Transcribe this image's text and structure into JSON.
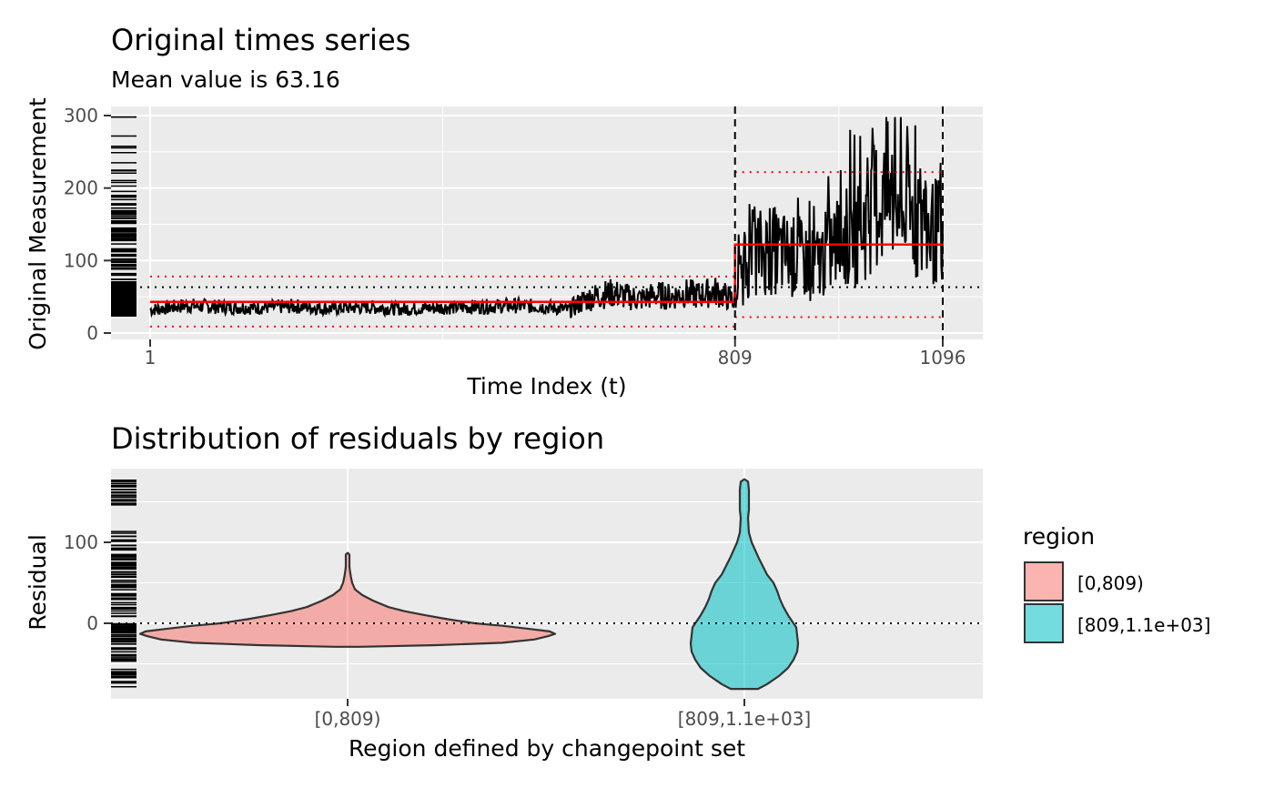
{
  "chart_data": [
    {
      "type": "line",
      "title": "Original times series",
      "subtitle": "Mean value is 63.16",
      "xlabel": "Time Index (t)",
      "ylabel": "Original Measurement",
      "xlim": [
        1,
        1096
      ],
      "ylim": [
        0,
        300
      ],
      "y_ticks": [
        0,
        100,
        200,
        300
      ],
      "x_ticks": [
        1,
        809,
        1096
      ],
      "x_tick_labels": [
        "1",
        "809",
        "1096"
      ],
      "mean": 63.16,
      "changepoints": [
        809,
        1096
      ],
      "grid": true,
      "series": [
        {
          "description": "observations",
          "x": [
            1,
            50,
            100,
            150,
            200,
            250,
            300,
            350,
            400,
            450,
            500,
            550,
            580,
            600,
            620,
            640,
            660,
            680,
            700,
            720,
            740,
            760,
            780,
            808,
            809,
            830,
            860,
            890,
            920,
            950,
            980,
            1000,
            1020,
            1040,
            1060,
            1080,
            1096
          ],
          "values": [
            32,
            38,
            36,
            35,
            37,
            34,
            36,
            33,
            35,
            36,
            38,
            36,
            32,
            45,
            52,
            55,
            50,
            47,
            53,
            50,
            55,
            52,
            58,
            45,
            55,
            110,
            115,
            105,
            95,
            125,
            140,
            175,
            190,
            170,
            160,
            140,
            140
          ]
        },
        {
          "description": "segment mean",
          "segments": [
            {
              "x": [
                1,
                809
              ],
              "value": 43
            },
            {
              "x": [
                809,
                1096
              ],
              "value": 122
            }
          ]
        },
        {
          "description": "segment bounds",
          "segments": [
            {
              "x": [
                1,
                809
              ],
              "lower": 9,
              "upper": 78
            },
            {
              "x": [
                809,
                1096
              ],
              "lower": 22,
              "upper": 222
            }
          ]
        }
      ]
    },
    {
      "type": "violin",
      "title": "Distribution of residuals by region",
      "xlabel": "Region defined by changepoint set",
      "ylabel": "Residual",
      "categories": [
        "[0,809)",
        "[809,1.1e+03]"
      ],
      "y_ticks": [
        0,
        100
      ],
      "ylim": [
        -95,
        185
      ],
      "zero_line": 0,
      "legend": {
        "title": "region",
        "placement": "right",
        "entries": [
          {
            "label": "[0,809)",
            "color": "#F8766D"
          },
          {
            "label": "[809,1.1e+03]",
            "color": "#00BFC4"
          }
        ]
      },
      "violins": [
        {
          "category": "[0,809)",
          "color": "#F8766D",
          "y": [
            -29,
            -27,
            -24,
            -20,
            -16,
            -13,
            -10,
            -7,
            -3,
            0,
            5,
            10,
            15,
            20,
            28,
            35,
            42,
            50,
            58,
            65,
            70,
            75,
            80,
            85,
            87
          ],
          "half_width": [
            14,
            98,
            170,
            205,
            220,
            228,
            222,
            200,
            170,
            140,
            110,
            85,
            62,
            45,
            28,
            16,
            8,
            5,
            3.5,
            2.5,
            2,
            2,
            2,
            2,
            0
          ]
        },
        {
          "category": "[809,1.1e+03]",
          "color": "#00BFC4",
          "y": [
            -81,
            -75,
            -65,
            -55,
            -45,
            -35,
            -25,
            -15,
            -5,
            0,
            10,
            20,
            30,
            40,
            50,
            60,
            80,
            100,
            112,
            130,
            140,
            155,
            165,
            175,
            178
          ],
          "half_width": [
            15,
            25,
            38,
            48,
            54,
            58,
            59,
            58,
            57,
            54,
            48,
            43,
            39,
            36,
            32,
            25,
            16,
            8,
            5,
            4,
            5,
            5,
            5,
            4,
            0
          ]
        }
      ]
    }
  ]
}
